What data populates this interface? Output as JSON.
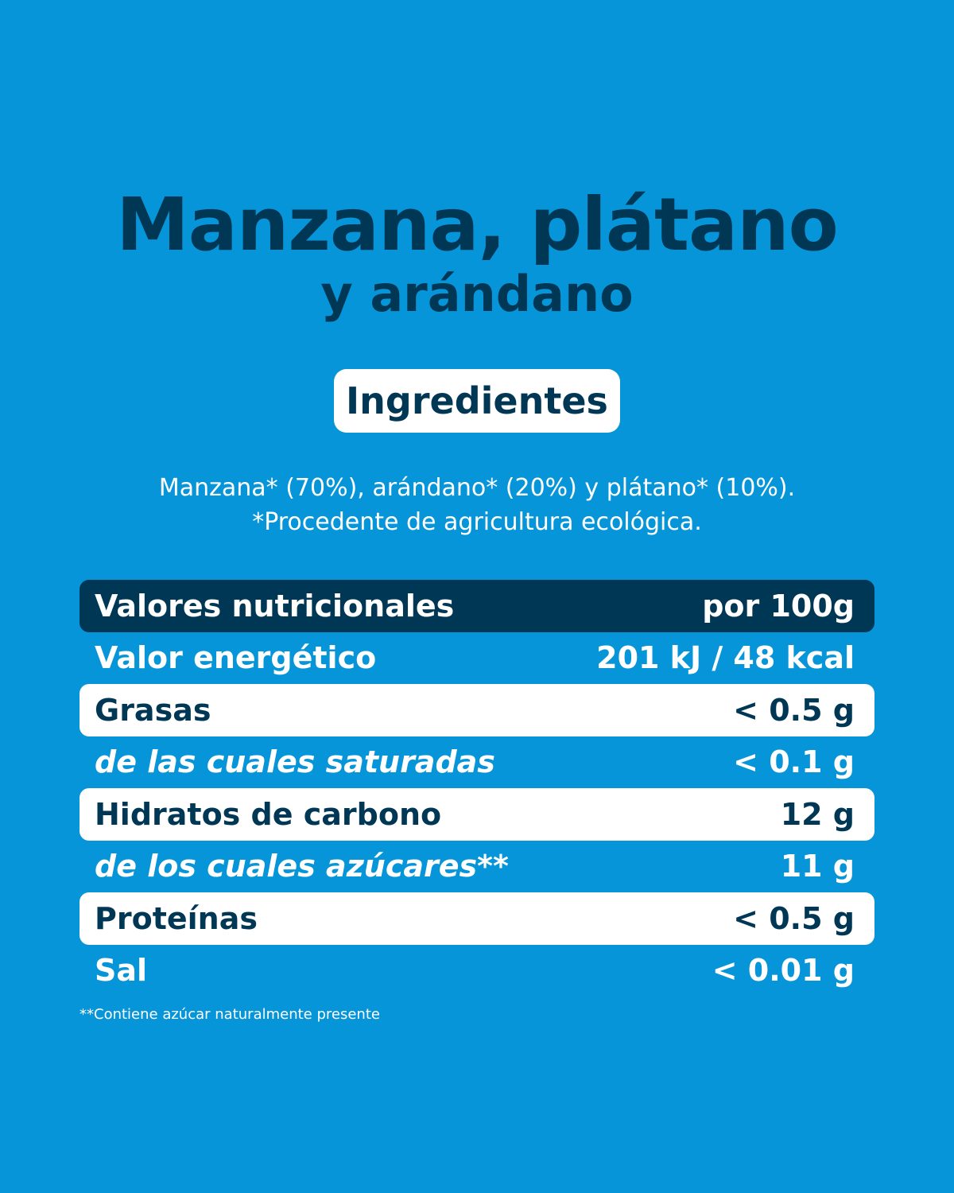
{
  "title": {
    "line1": "Manzana, plátano",
    "line2": "y arándano"
  },
  "ingredients": {
    "heading": "Ingredientes",
    "line1": "Manzana* (70%), arándano* (20%) y plátano* (10%).",
    "line2": "*Procedente de agricultura ecológica."
  },
  "nutrition": {
    "header": {
      "label": "Valores nutricionales",
      "value": "por 100g"
    },
    "rows": [
      {
        "label": "Valor energético",
        "value": "201 kJ / 48 kcal"
      },
      {
        "label": "Grasas",
        "value": "< 0.5 g"
      },
      {
        "label": "de las cuales saturadas",
        "value": "< 0.1 g"
      },
      {
        "label": "Hidratos de carbono",
        "value": "12 g"
      },
      {
        "label": "de los cuales azúcares**",
        "value": "11 g"
      },
      {
        "label": "Proteínas",
        "value": "< 0.5 g"
      },
      {
        "label": "Sal",
        "value": "< 0.01 g"
      }
    ]
  },
  "footnote": "**Contiene azúcar naturalmente presente",
  "colors": {
    "background": "#0795d9",
    "navy": "#003755",
    "white": "#ffffff"
  }
}
